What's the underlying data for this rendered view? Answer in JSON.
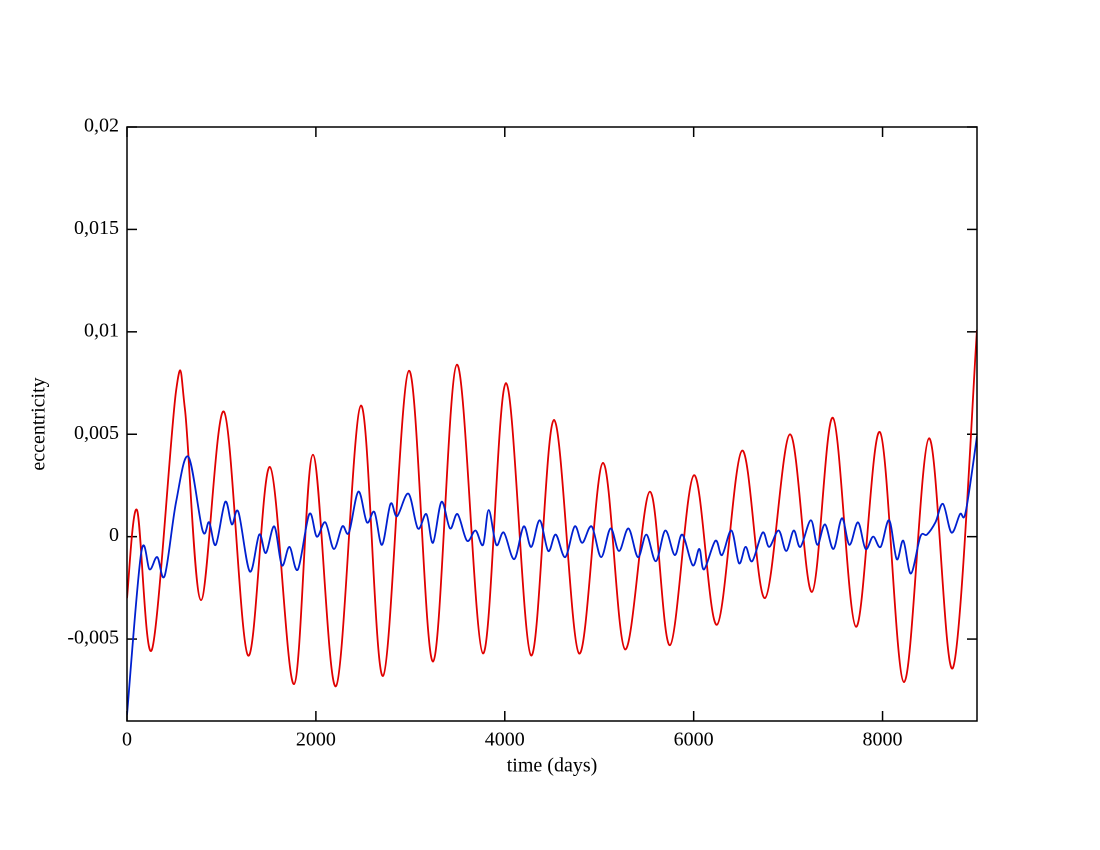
{
  "chart_data": {
    "type": "line",
    "x_label": "time (days)",
    "y_label": "eccentricity",
    "xlim": [
      0,
      9000
    ],
    "xticks": [
      0,
      2000,
      4000,
      6000,
      8000
    ],
    "ylim": [
      -0.009,
      0.02
    ],
    "yticks": [
      {
        "value": -0.005,
        "label": "-0,005"
      },
      0,
      {
        "value": 0.005,
        "label": "0,005"
      },
      {
        "value": 0.01,
        "label": "0,01"
      },
      {
        "value": 0.015,
        "label": "0,015"
      },
      {
        "value": 0.02,
        "label": "0,02"
      }
    ],
    "series": [
      {
        "color": "#e00000",
        "x": [
          0,
          106,
          265,
          519,
          614,
          784,
          1027,
          1281,
          1514,
          1768,
          1969,
          2213,
          2478,
          2711,
          2986,
          3240,
          3494,
          3769,
          4013,
          4278,
          4521,
          4786,
          5040,
          5273,
          5537,
          5749,
          6003,
          6247,
          6512,
          6755,
          7020,
          7253,
          7475,
          7719,
          7973,
          8227,
          8492,
          8746,
          9000
        ],
        "values": [
          -0.003,
          0.0013,
          -0.0055,
          0.0071,
          0.0062,
          -0.0031,
          0.0061,
          -0.0058,
          0.0034,
          -0.0072,
          0.004,
          -0.0073,
          0.0064,
          -0.0068,
          0.0081,
          -0.0061,
          0.0084,
          -0.0057,
          0.0075,
          -0.0058,
          0.0057,
          -0.0057,
          0.0036,
          -0.0055,
          0.0022,
          -0.0053,
          0.003,
          -0.0043,
          0.0042,
          -0.003,
          0.005,
          -0.0027,
          0.0058,
          -0.0044,
          0.0051,
          -0.0071,
          0.0048,
          -0.0064,
          0.0101
        ]
      },
      {
        "color": "#0020d0",
        "x": [
          0,
          150,
          240,
          320,
          400,
          520,
          650,
          800,
          870,
          940,
          1040,
          1110,
          1180,
          1300,
          1400,
          1470,
          1560,
          1640,
          1720,
          1810,
          1930,
          2010,
          2100,
          2190,
          2280,
          2350,
          2450,
          2540,
          2620,
          2700,
          2790,
          2860,
          2980,
          3080,
          3170,
          3240,
          3330,
          3420,
          3500,
          3600,
          3690,
          3770,
          3830,
          3910,
          3990,
          4100,
          4200,
          4280,
          4370,
          4460,
          4540,
          4640,
          4740,
          4820,
          4920,
          5020,
          5120,
          5210,
          5310,
          5410,
          5500,
          5600,
          5700,
          5800,
          5880,
          5990,
          6060,
          6110,
          6230,
          6300,
          6400,
          6480,
          6550,
          6620,
          6730,
          6800,
          6900,
          6980,
          7060,
          7130,
          7240,
          7310,
          7390,
          7480,
          7570,
          7650,
          7740,
          7820,
          7900,
          7980,
          8070,
          8150,
          8220,
          8300,
          8400,
          8470,
          8560,
          8640,
          8730,
          8820,
          8880,
          9000
        ],
        "values": [
          -0.0087,
          -0.0008,
          -0.0016,
          -0.001,
          -0.0019,
          0.0017,
          0.0039,
          0.0003,
          0.0007,
          -0.0004,
          0.0017,
          0.0006,
          0.0012,
          -0.0017,
          0.0001,
          -0.0008,
          0.0005,
          -0.0014,
          -0.0005,
          -0.0016,
          0.0011,
          0,
          0.0007,
          -0.0006,
          0.0005,
          0.0002,
          0.0022,
          0.0007,
          0.0012,
          -0.0004,
          0.0016,
          0.001,
          0.0021,
          0.0004,
          0.0011,
          -0.0003,
          0.0017,
          0.0004,
          0.0011,
          -0.0002,
          0.0003,
          -0.0004,
          0.0013,
          -0.0004,
          0.0002,
          -0.0011,
          0.0005,
          -0.0005,
          0.0008,
          -0.0007,
          0.0001,
          -0.001,
          0.0005,
          -0.0003,
          0.0005,
          -0.001,
          0.0004,
          -0.0007,
          0.0004,
          -0.001,
          0.0001,
          -0.0012,
          0.0003,
          -0.0009,
          0.0001,
          -0.0014,
          -0.0006,
          -0.0016,
          -0.0002,
          -0.0009,
          0.0003,
          -0.0013,
          -0.0005,
          -0.0012,
          0.0002,
          -0.0005,
          0.0003,
          -0.0007,
          0.0003,
          -0.0005,
          0.0008,
          -0.0004,
          0.0006,
          -0.0006,
          0.0009,
          -0.0004,
          0.0007,
          -0.0006,
          0,
          -0.0005,
          0.0008,
          -0.0011,
          -0.0002,
          -0.0018,
          0,
          0.0001,
          0.0007,
          0.0016,
          0.0002,
          0.0011,
          0.0012,
          0.0049
        ]
      }
    ]
  }
}
